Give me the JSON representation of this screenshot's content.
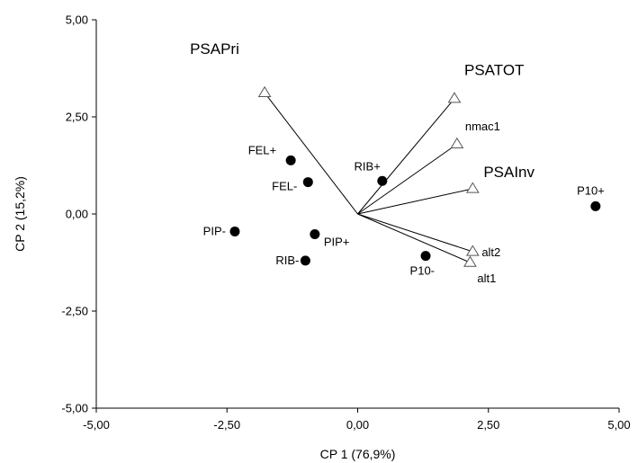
{
  "chart_data": {
    "type": "scatter",
    "title": "",
    "xlabel": "CP 1 (76,9%)",
    "ylabel": "CP 2 (15,2%)",
    "xlim": [
      -5.0,
      5.0
    ],
    "ylim": [
      -5.0,
      5.0
    ],
    "x_ticks": [
      -5.0,
      -2.5,
      0.0,
      2.5,
      5.0
    ],
    "y_ticks": [
      -5.0,
      -2.5,
      0.0,
      2.5,
      5.0
    ],
    "x_tick_labels": [
      "-5,00",
      "-2,50",
      "0,00",
      "2,50",
      "5,00"
    ],
    "y_tick_labels": [
      "-5,00",
      "-2,50",
      "0,00",
      "2,50",
      "5,00"
    ],
    "grid": false,
    "colors": {
      "points": "#000000",
      "vectors": "#000000",
      "vector_markers": "#ffffff"
    },
    "points": [
      {
        "label": "FEL+",
        "x": -1.28,
        "y": 1.38
      },
      {
        "label": "FEL-",
        "x": -0.95,
        "y": 0.82
      },
      {
        "label": "RIB+",
        "x": 0.47,
        "y": 0.85
      },
      {
        "label": "PIP-",
        "x": -2.35,
        "y": -0.45
      },
      {
        "label": "PIP+",
        "x": -0.82,
        "y": -0.52
      },
      {
        "label": "RIB-",
        "x": -1.0,
        "y": -1.2
      },
      {
        "label": "P10-",
        "x": 1.3,
        "y": -1.08
      },
      {
        "label": "P10+",
        "x": 4.55,
        "y": 0.2
      }
    ],
    "vectors": [
      {
        "label": "PSAPri",
        "x": -1.78,
        "y": 3.12
      },
      {
        "label": "PSATOT",
        "x": 1.85,
        "y": 2.97
      },
      {
        "label": "nmac1",
        "x": 1.9,
        "y": 1.8
      },
      {
        "label": "PSAInv",
        "x": 2.2,
        "y": 0.65
      },
      {
        "label": "alt2",
        "x": 2.2,
        "y": -0.97
      },
      {
        "label": "alt1",
        "x": 2.15,
        "y": -1.25
      }
    ]
  }
}
